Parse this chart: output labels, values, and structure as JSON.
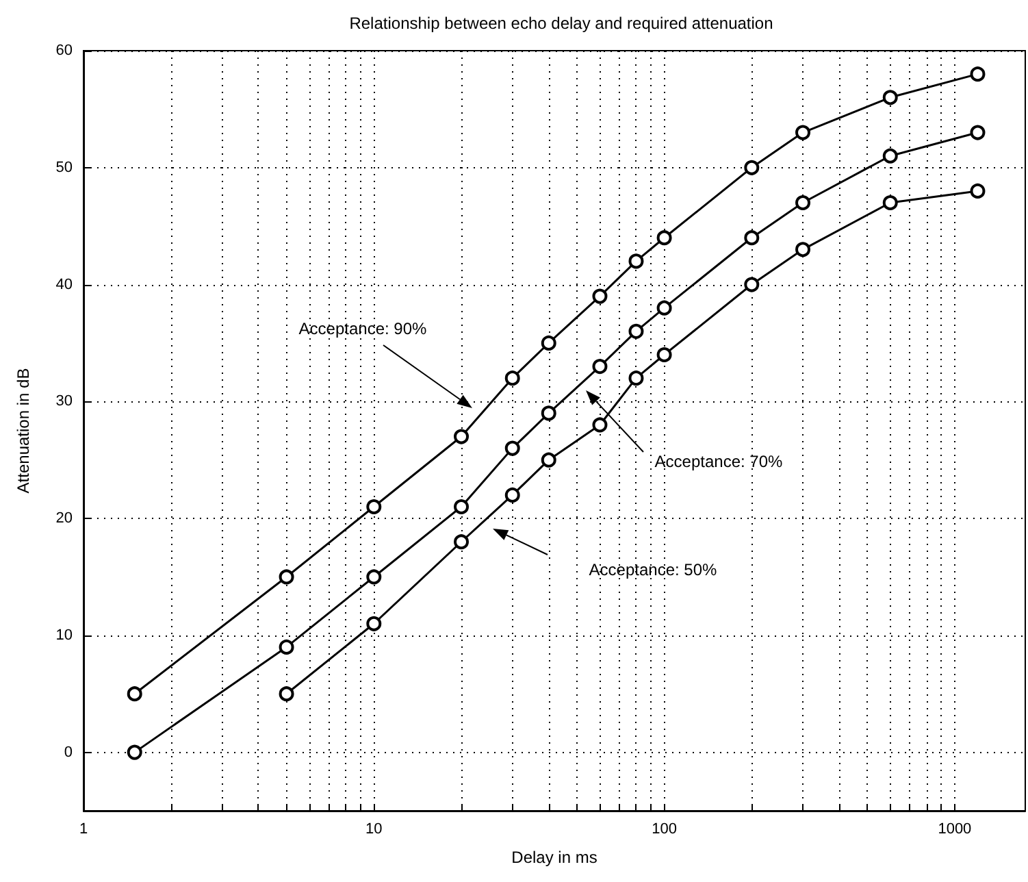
{
  "chart_data": {
    "type": "line",
    "title": "Relationship between echo delay and required attenuation",
    "xlabel": "Delay in ms",
    "ylabel": "Attenuation in dB",
    "series": [
      {
        "color": "#000000",
        "x": [
          1.5,
          5,
          10,
          20,
          30,
          40,
          60,
          80,
          100,
          200,
          300,
          600,
          1200
        ],
        "values": [
          5,
          15,
          21,
          27,
          32,
          35,
          39,
          42,
          44,
          50,
          53,
          56,
          58
        ]
      },
      {
        "color": "#000000",
        "x": [
          1.5,
          5,
          10,
          20,
          30,
          40,
          60,
          80,
          100,
          200,
          300,
          600,
          1200
        ],
        "values": [
          0,
          9,
          15,
          21,
          26,
          29,
          33,
          36,
          38,
          44,
          47,
          51,
          53
        ]
      },
      {
        "color": "#000000",
        "x": [
          5,
          10,
          20,
          30,
          40,
          60,
          80,
          100,
          200,
          300,
          600,
          1200
        ],
        "values": [
          5,
          11,
          18,
          22,
          25,
          28,
          32,
          34,
          40,
          43,
          47,
          48
        ]
      }
    ],
    "annotations": [
      "Acceptance: 90%",
      "Acceptance: 70%",
      "Acceptance: 50%"
    ],
    "log": "x",
    "xlim": [
      1,
      1750
    ],
    "ylim": [
      -5,
      60
    ],
    "xticks": [
      1,
      {
        "value": 2,
        "label": null
      },
      {
        "value": 3,
        "label": null
      },
      {
        "value": 4,
        "label": null
      },
      {
        "value": 5,
        "label": null
      },
      {
        "value": 6,
        "label": null
      },
      {
        "value": 7,
        "label": null
      },
      {
        "value": 8,
        "label": null
      },
      {
        "value": 9,
        "label": null
      },
      10,
      {
        "value": 20,
        "label": null
      },
      {
        "value": 30,
        "label": null
      },
      {
        "value": 40,
        "label": null
      },
      {
        "value": 50,
        "label": null
      },
      {
        "value": 60,
        "label": null
      },
      {
        "value": 70,
        "label": null
      },
      {
        "value": 80,
        "label": null
      },
      {
        "value": 90,
        "label": null
      },
      100,
      {
        "value": 200,
        "label": null
      },
      {
        "value": 300,
        "label": null
      },
      {
        "value": 400,
        "label": null
      },
      {
        "value": 500,
        "label": null
      },
      {
        "value": 600,
        "label": null
      },
      {
        "value": 700,
        "label": null
      },
      {
        "value": 800,
        "label": null
      },
      {
        "value": 900,
        "label": null
      },
      1000
    ],
    "yticks": [
      0,
      10,
      20,
      30,
      40,
      50,
      60
    ],
    "grid": true,
    "marker": "circle",
    "line_style": "solid"
  }
}
